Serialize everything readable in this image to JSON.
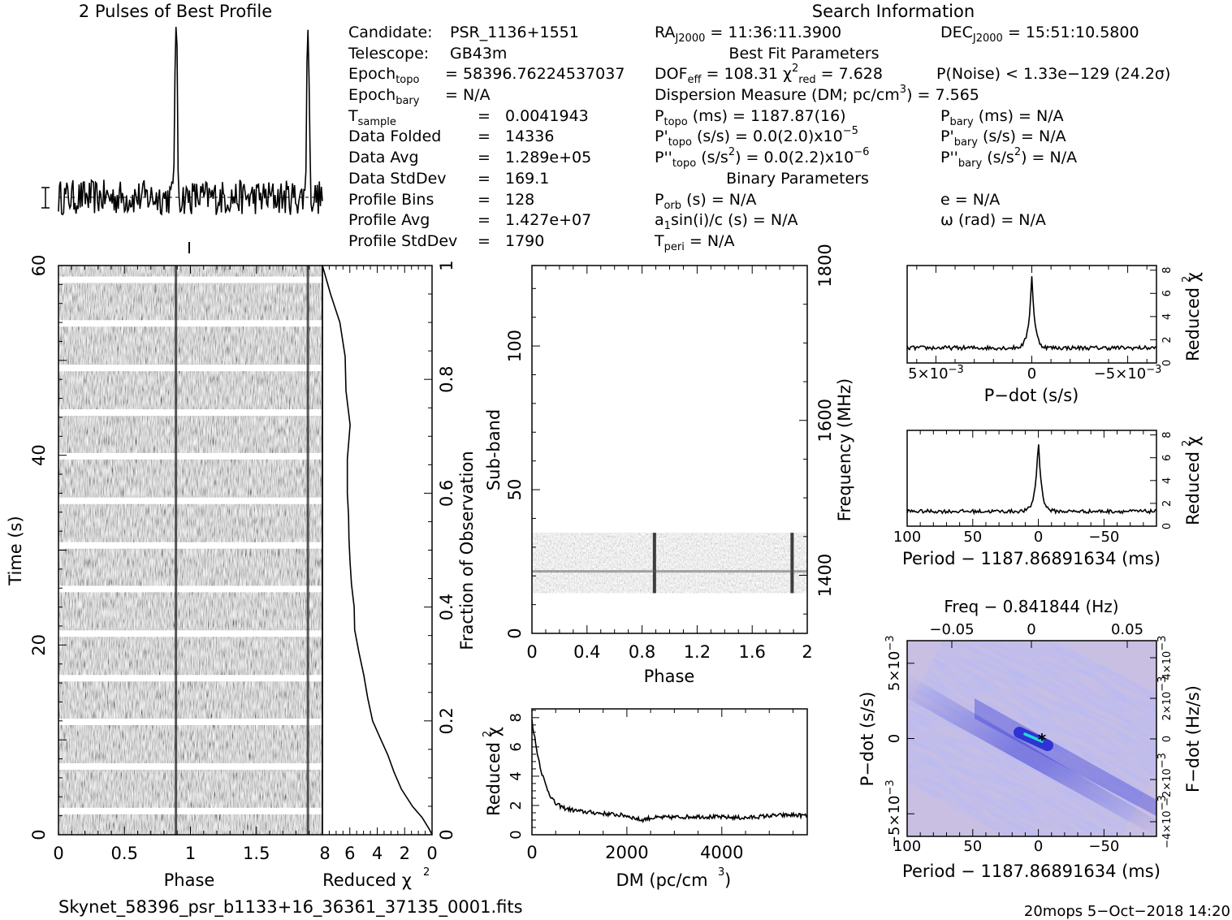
{
  "title_profile": "2 Pulses of Best Profile",
  "title_search": "Search Information",
  "info_left": [
    {
      "label": "Candidate:",
      "value": "PSR_1136+1551"
    },
    {
      "label": "Telescope:",
      "value": "GB43m"
    },
    {
      "label": "Epoch",
      "sub": "topo",
      "value": "= 58396.76224537037"
    },
    {
      "label": "Epoch",
      "sub": "bary",
      "value": "= N/A"
    },
    {
      "label": "T",
      "sub": "sample",
      "eq": "=",
      "value": "0.0041943"
    },
    {
      "label": "Data Folded",
      "eq": "=",
      "value": "14336"
    },
    {
      "label": "Data Avg",
      "eq": "=",
      "value": "1.289e+05"
    },
    {
      "label": "Data StdDev",
      "eq": "=",
      "value": "169.1"
    },
    {
      "label": "Profile Bins",
      "eq": "=",
      "value": "128"
    },
    {
      "label": "Profile Avg",
      "eq": "=",
      "value": "1.427e+07"
    },
    {
      "label": "Profile StdDev",
      "eq": "=",
      "value": "1790"
    }
  ],
  "info_mid": {
    "ra": "RA",
    "ra_sub": "J2000",
    "ra_val": "= 11:36:11.3900",
    "best_fit": "Best Fit Parameters",
    "dof": "DOF",
    "dof_sub": "eff",
    "dof_val": "= 108.31",
    "chi": "χ",
    "chi_sup": "2",
    "chi_sub": "red",
    "chi_val": "= 7.628",
    "dm_line": "Dispersion Measure (DM; pc/cm",
    "dm_sup": "3",
    "dm_val": ") = 7.565",
    "p": "P",
    "p_sub": "topo",
    "p_val": "(ms) =  1187.87(16)",
    "pd": "P'",
    "pd_sub": "topo",
    "pd_val": "(s/s) = 0.0(2.0)x10",
    "pd_exp": "−5",
    "pdd": "P''",
    "pdd_sub": "topo",
    "pdd_val": "(s/s",
    "pdd_sup": "2",
    "pdd_val2": ") = 0.0(2.2)x10",
    "pdd_exp": "−6",
    "binary": "Binary Parameters",
    "porb": "P",
    "porb_sub": "orb",
    "porb_val": "(s) = N/A",
    "a1": "a",
    "a1_sub": "1",
    "a1_val": "sin(i)/c (s) = N/A",
    "tperi": "T",
    "tperi_sub": "peri",
    "tperi_val": "= N/A"
  },
  "info_right": {
    "dec": "DEC",
    "dec_sub": "J2000",
    "dec_val": "= 15:51:10.5800",
    "pnoise": "P(Noise) < 1.33e−129   (24.2σ)",
    "pb": "P",
    "pb_sub": "bary",
    "pb_val": "(ms) = N/A",
    "pbd": "P'",
    "pbd_sub": "bary",
    "pbd_val": "(s/s) = N/A",
    "pbdd": "P''",
    "pbdd_sub": "bary",
    "pbdd_val": "(s/s",
    "pbdd_sup": "2",
    "pbdd_val2": ") = N/A",
    "e": "e = N/A",
    "omega": "ω (rad) = N/A"
  },
  "footer": {
    "filename": "Skynet_58396_psr_b1133+16_36361_37135_0001.fits",
    "stamp": "20mops   5−Oct−2018 14:20"
  },
  "chart_data": [
    {
      "name_tag": "profile",
      "type": "line",
      "title": "2 Pulses of Best Profile",
      "x_range": [
        0,
        2
      ],
      "pulse_phases": [
        0.89,
        1.89
      ],
      "pulse_peak_rel": 1.0,
      "noise_level_rel": 0.12
    },
    {
      "name_tag": "time-phase",
      "type": "heatmap",
      "xlabel": "Phase",
      "ylabel": "Time (s)",
      "xlim": [
        0,
        2
      ],
      "ylim": [
        0,
        60
      ],
      "xticks": [
        "0",
        "0.5",
        "1",
        "1.5"
      ],
      "yticks": [
        "0",
        "20",
        "40",
        "60"
      ],
      "pulse_phases": [
        0.89,
        1.89
      ],
      "gap_times": [
        2.5,
        7.2,
        11.9,
        16.5,
        21.2,
        25.9,
        30.5,
        35.2,
        39.9,
        44.5,
        49.2,
        53.9,
        58.5
      ]
    },
    {
      "name_tag": "time-chi2",
      "type": "line",
      "xlabel": "Reduced χ",
      "xlabel_sup": "2",
      "ylabel": "Fraction of Observation",
      "xlim": [
        8,
        0
      ],
      "ylim": [
        0,
        1
      ],
      "xticks": [
        "8",
        "6",
        "4",
        "2",
        "0"
      ],
      "yticks": [
        "0",
        "0.2",
        "0.4",
        "0.6",
        "0.8",
        "1"
      ],
      "x": [
        0,
        0.2,
        0.6,
        1.4,
        2.2,
        2.8,
        3.3,
        3.9,
        4.3,
        4.8,
        5.1,
        5.4,
        5.6,
        5.8,
        5.9,
        6.0,
        6.0,
        6.1,
        6.1,
        6.2,
        6.0,
        6.2,
        6.4,
        6.8,
        7.4,
        8.0
      ],
      "y": [
        0,
        0.01,
        0.03,
        0.05,
        0.08,
        0.11,
        0.14,
        0.17,
        0.2,
        0.24,
        0.28,
        0.32,
        0.36,
        0.4,
        0.44,
        0.48,
        0.52,
        0.56,
        0.6,
        0.66,
        0.72,
        0.78,
        0.84,
        0.9,
        0.95,
        1.0
      ]
    },
    {
      "name_tag": "subband-phase",
      "type": "heatmap",
      "xlabel": "Phase",
      "ylabel": "Sub-band",
      "y2label": "Frequency (MHz)",
      "xlim": [
        0,
        2
      ],
      "ylim": [
        0,
        128
      ],
      "xticks": [
        "0",
        "0.4",
        "0.8",
        "1.2",
        "1.6",
        "2"
      ],
      "yticks": [
        "0",
        "50",
        "100"
      ],
      "y2ticks": [
        "1400",
        "1600",
        "1800"
      ],
      "y2lim": [
        1325,
        1800
      ],
      "band_range": [
        14,
        35
      ],
      "pulse_phases": [
        0.89,
        1.89
      ]
    },
    {
      "name_tag": "dm-chi2",
      "type": "line",
      "xlabel": "DM (pc/cm",
      "xlabel_sup": "3",
      "ylabel": "Reduced χ",
      "ylabel_sup": "2",
      "xlim": [
        0,
        5800
      ],
      "ylim": [
        0,
        8.6
      ],
      "xticks": [
        "0",
        "2000",
        "4000"
      ],
      "yticks": [
        "0",
        "2",
        "4",
        "6",
        "8"
      ],
      "x": [
        0,
        100,
        200,
        300,
        400,
        500,
        700,
        1000,
        1500,
        2000,
        2300,
        2500,
        3000,
        3500,
        4000,
        4500,
        5000,
        5500,
        5800
      ],
      "y": [
        7.8,
        5.8,
        4.3,
        3.3,
        2.6,
        2.1,
        1.8,
        1.6,
        1.45,
        1.3,
        1.0,
        1.15,
        1.2,
        1.25,
        1.2,
        1.15,
        1.3,
        1.35,
        1.3
      ]
    },
    {
      "name_tag": "pdot-chi2",
      "type": "line",
      "xlabel": "P−dot (s/s)",
      "ylabel": "Reduced χ",
      "ylabel_sup": "2",
      "xlim": [
        0.0065,
        -0.0065
      ],
      "ylim": [
        0,
        8.4
      ],
      "xticks": [
        "5×10",
        "0",
        "−5×10"
      ],
      "xticks_exp": "−3",
      "yticks": [
        "0",
        "2",
        "4",
        "6",
        "8"
      ],
      "peak": 7.6,
      "baseline": 1.3
    },
    {
      "name_tag": "period-chi2",
      "type": "line",
      "xlabel": "Period − 1187.86891634 (ms)",
      "ylabel": "Reduced χ",
      "ylabel_sup": "2",
      "xlim": [
        100,
        -90
      ],
      "ylim": [
        0,
        8.4
      ],
      "xticks": [
        "100",
        "50",
        "0",
        "−50"
      ],
      "yticks": [
        "0",
        "2",
        "4",
        "6",
        "8"
      ],
      "peak": 7.7,
      "baseline": 1.3
    },
    {
      "name_tag": "period-pdot",
      "type": "heatmap",
      "title": "Freq − 0.841844 (Hz)",
      "xlabel": "Period − 1187.86891634 (ms)",
      "ylabel": "P−dot (s/s)",
      "y2label": "F−dot (Hz/s)",
      "xlim": [
        100,
        -90
      ],
      "ylim": [
        0.0065,
        -0.0065
      ],
      "xticks": [
        "100",
        "50",
        "0",
        "−50"
      ],
      "top_ticks": [
        "−0.05",
        "0",
        "0.05"
      ],
      "yticks": [
        "−5×10",
        "0",
        "5×10"
      ],
      "yticks_exp": "−3",
      "y2ticks": [
        "4×10",
        "2×10",
        "0",
        "−2×10",
        "−4×10"
      ],
      "y2ticks_exp": "−3",
      "best": [
        0,
        0
      ],
      "colors": [
        "#c7bce0",
        "#7a7de6",
        "#2c2fd4",
        "#22dcd8"
      ]
    }
  ]
}
